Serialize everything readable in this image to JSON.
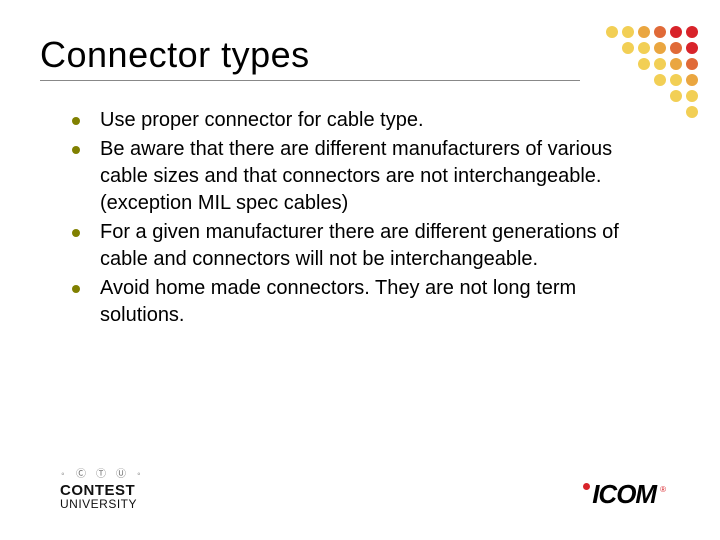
{
  "title": "Connector types",
  "bullets": [
    "Use proper connector for cable type.",
    "Be aware that there are different manufacturers of various cable sizes and that connectors are not interchangeable. (exception MIL spec cables)",
    "For a given manufacturer there are different generations of cable and connectors will not be interchangeable.",
    "Avoid home made connectors.  They are not long term solutions."
  ],
  "footer": {
    "left_small": "◦ Ⓒ Ⓣ Ⓤ ◦",
    "left_line1": "CONTEST",
    "left_line2": "UNIVERSITY",
    "right_brand": "ICOM",
    "right_reg": "®"
  },
  "colors": {
    "bullet": "#808000",
    "dot_color1": "#d8232a",
    "dot_color2": "#e06a38",
    "dot_color3": "#eaa640",
    "dot_color4": "#f2cf55"
  },
  "dot_grid_comment": "6x6 upper-triangle of dots, diagonal bands of warm colors"
}
